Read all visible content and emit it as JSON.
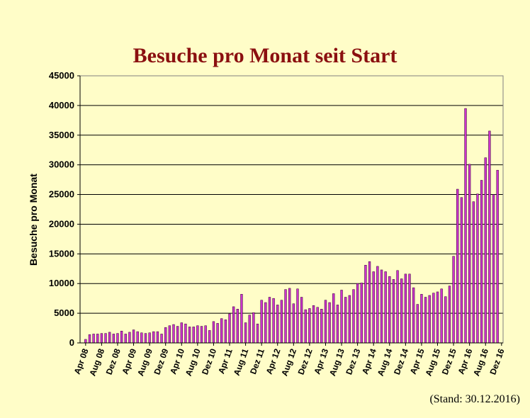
{
  "chart_data": {
    "type": "bar",
    "title": "Besuche pro Monat seit Start",
    "ylabel": "Besuche pro Monat",
    "xlabel": "",
    "ylim": [
      0,
      45000
    ],
    "yticks": [
      0,
      5000,
      10000,
      15000,
      20000,
      25000,
      30000,
      35000,
      40000,
      45000
    ],
    "xtick_labels": [
      "Apr 08",
      "Aug 08",
      "Dez 08",
      "Apr 09",
      "Aug 09",
      "Dez 09",
      "Apr 10",
      "Aug 10",
      "Dez 10",
      "Apr 11",
      "Aug 11",
      "Dez 11",
      "Apr 12",
      "Aug 12",
      "Dez 12",
      "Apr 13",
      "Aug 13",
      "Dez 13",
      "Apr 14",
      "Aug 14",
      "Dez 14",
      "Apr 15",
      "Aug 15",
      "Dez 15",
      "Apr 16",
      "Aug 16",
      "Dez 16"
    ],
    "bar_color": "#cc33cc",
    "grid": true,
    "legend": "none",
    "values": [
      600,
      1400,
      1500,
      1500,
      1600,
      1600,
      1800,
      1500,
      1600,
      2000,
      1500,
      1800,
      2200,
      1900,
      1700,
      1600,
      1700,
      1900,
      1900,
      1500,
      2600,
      2900,
      3100,
      2800,
      3400,
      3200,
      2700,
      2700,
      2900,
      2800,
      2900,
      2100,
      3600,
      3300,
      4100,
      3900,
      4900,
      6100,
      5700,
      8200,
      3400,
      4700,
      5100,
      3200,
      7200,
      6800,
      7700,
      7500,
      6400,
      7200,
      9000,
      9200,
      6600,
      9100,
      7700,
      5600,
      5800,
      6300,
      6000,
      5700,
      7200,
      6800,
      8300,
      6400,
      8900,
      7700,
      8000,
      9000,
      10000,
      10100,
      13100,
      13700,
      12000,
      12900,
      12300,
      12000,
      11200,
      10700,
      12200,
      10800,
      11600,
      11600,
      9300,
      6500,
      8200,
      7700,
      8000,
      8400,
      8600,
      9100,
      7800,
      9600,
      14600,
      25900,
      24500,
      39500,
      30100,
      23800,
      25100,
      27400,
      31200,
      35700,
      25000,
      29100
    ],
    "stand_note": "(Stand: 30.12.2016)"
  }
}
